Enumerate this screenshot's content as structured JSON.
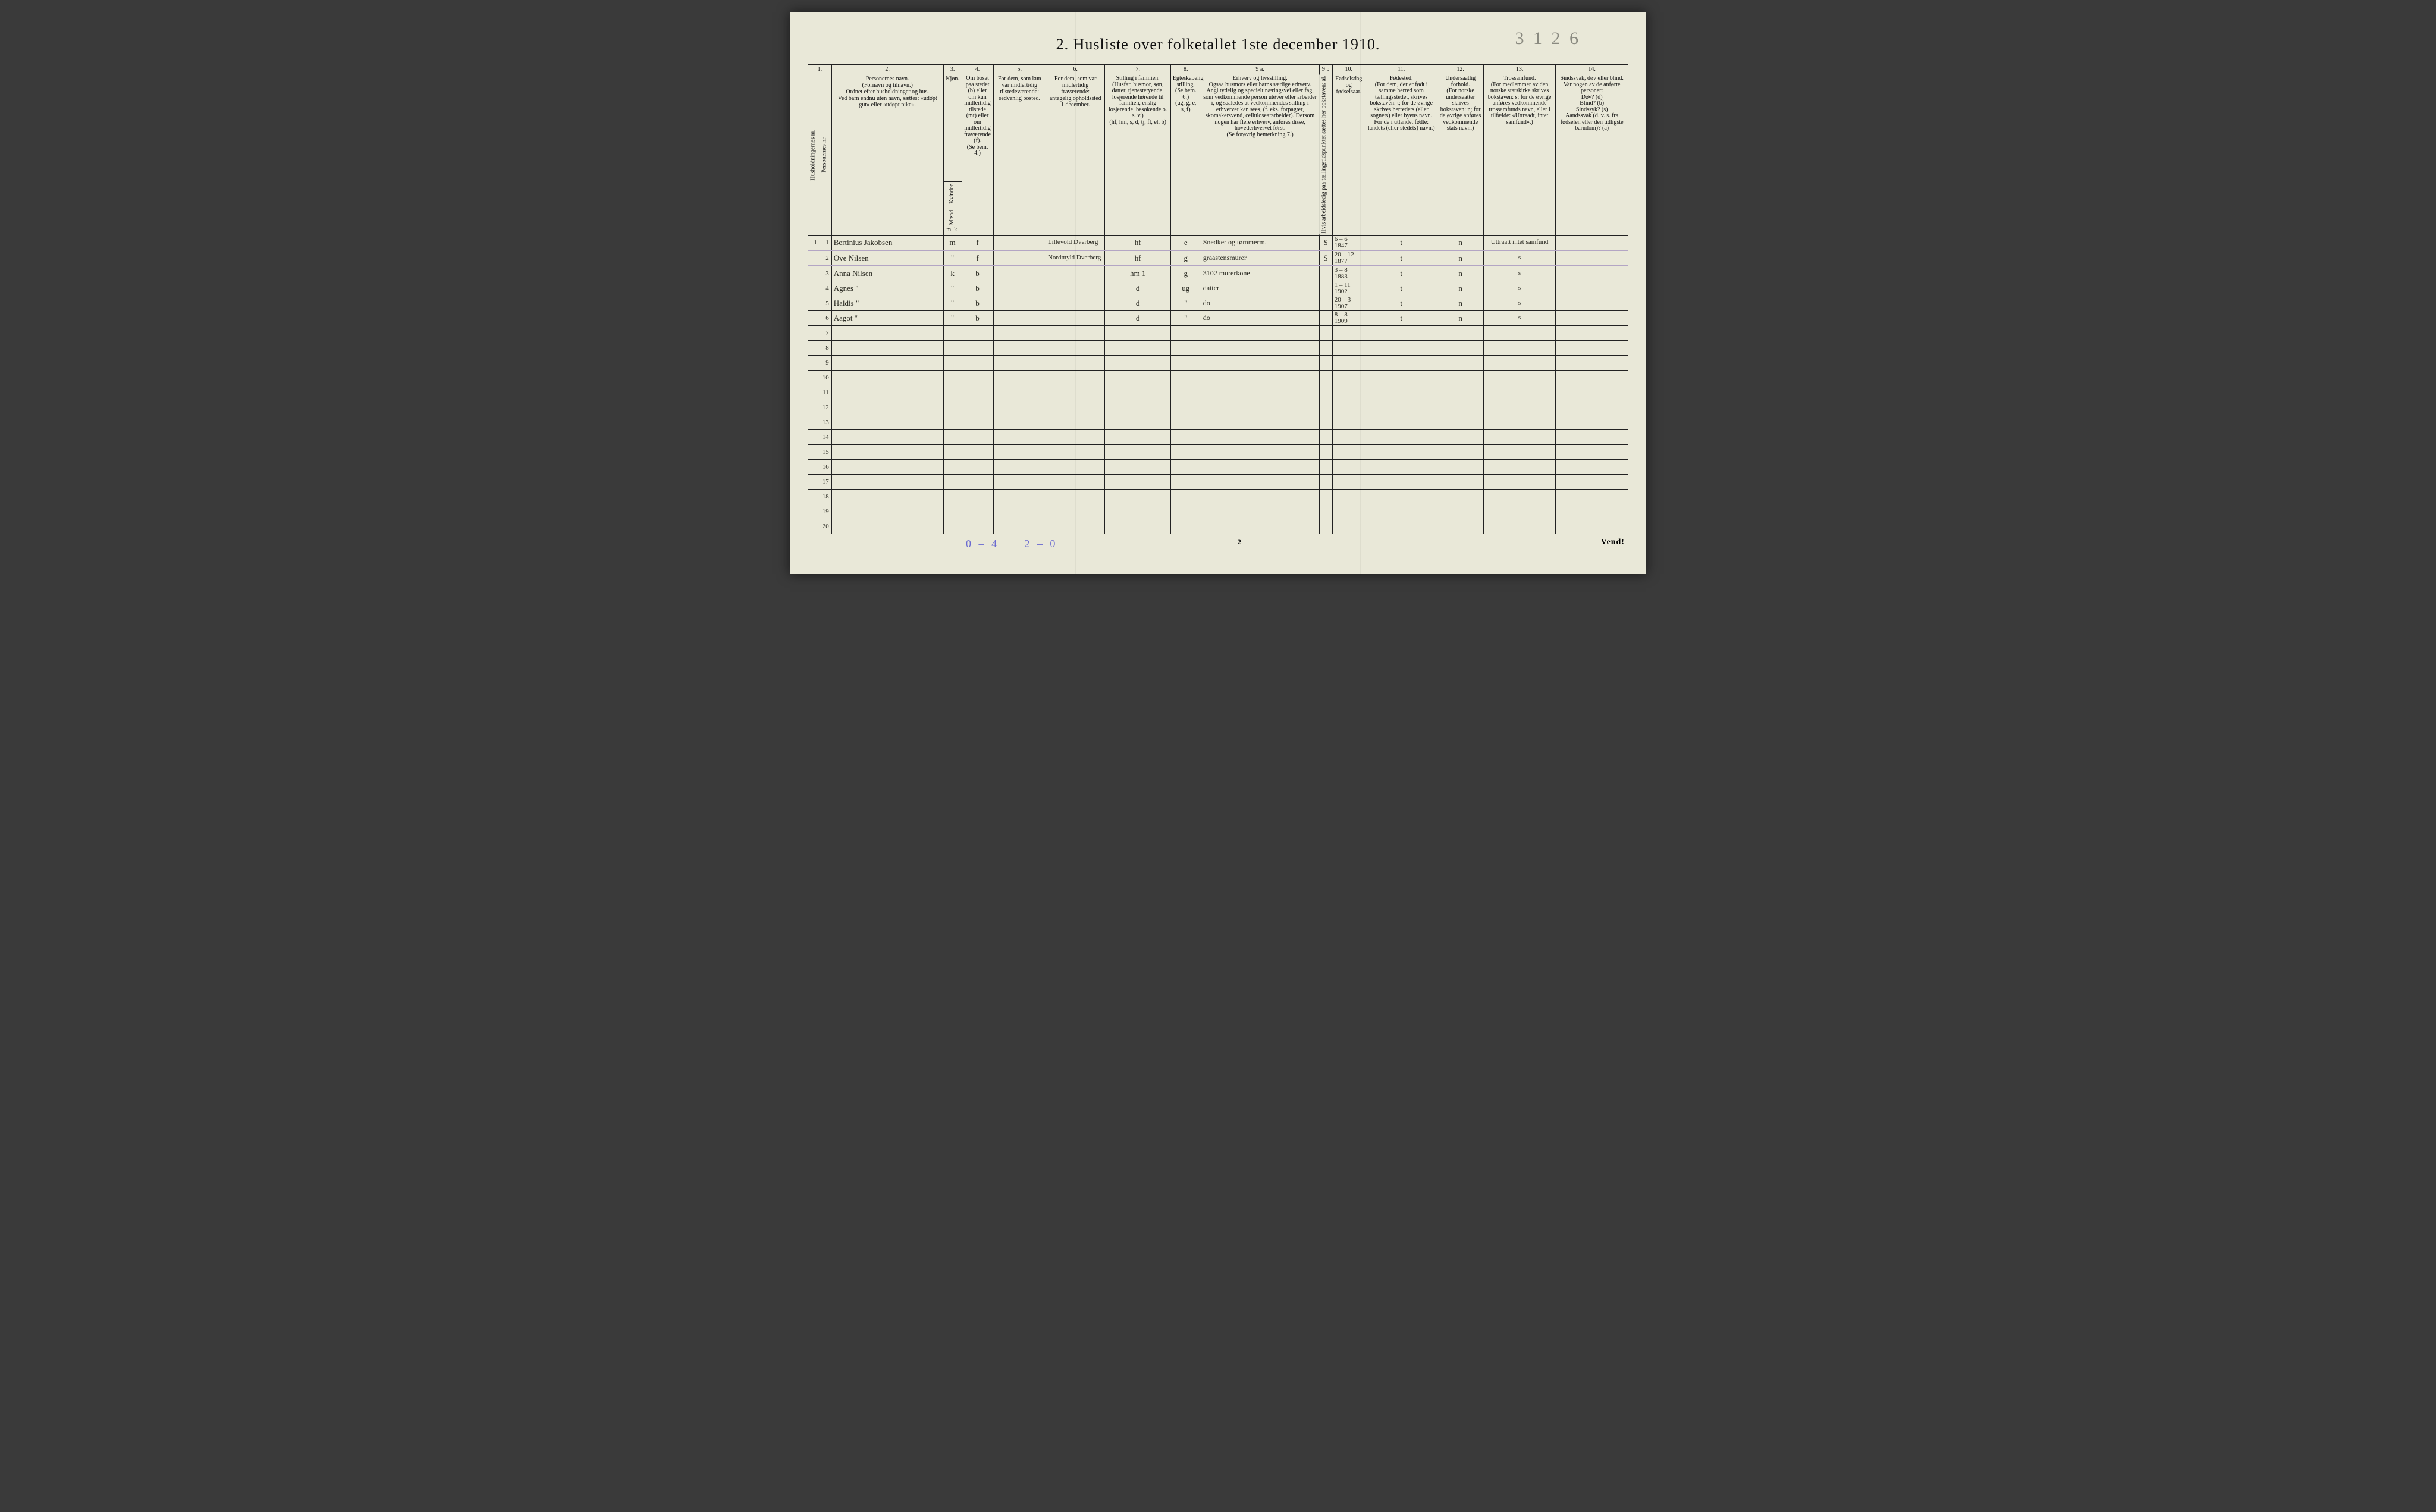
{
  "page": {
    "title": "2.  Husliste over folketallet 1ste december 1910.",
    "top_right_pencil": "3 1 2 6",
    "page_number_center": "2",
    "vend": "Vend!",
    "bottom_left_pencil": "0 – 4",
    "bottom_mid_pencil": "2 – 0"
  },
  "columns": {
    "nums": [
      "1.",
      "",
      "2.",
      "3.",
      "4.",
      "5.",
      "6.",
      "7.",
      "8.",
      "9 a.",
      "9 b",
      "10.",
      "11.",
      "12.",
      "13.",
      "14."
    ],
    "h1_hush": "Husholdningernes nr.",
    "h1_pers": "Personernes nr.",
    "h2": "Personernes navn.\n(Fornavn og tilnavn.)\nOrdnet efter husholdninger og hus.\nVed barn endnu uten navn, sættes: «udøpt gut» eller «udøpt pike».",
    "h3": "Kjøn.",
    "h3_m": "Mænd.",
    "h3_k": "Kvinder.",
    "h3_mk": "m.  k.",
    "h4": "Om bosat paa stedet (b) eller om kun midlertidig tilstede (mt) eller om midlertidig fraværende (f).\n(Se bem. 4.)",
    "h5": "For dem, som kun var midlertidig tilstedeværende:\nsedvanlig bosted.",
    "h6": "For dem, som var midlertidig fraværende:\nantagelig opholdssted 1 december.",
    "h7": "Stilling i familien.\n(Husfar, husmor, søn, datter, tjenestetyende, losjerende hørende til familien, enslig losjerende, besøkende o. s. v.)\n(hf, hm, s, d, tj, fl, el, b)",
    "h8": "Egteskabelig stilling.\n(Se bem. 6.)\n(ug, g, e, s, f)",
    "h9a": "Erhverv og livsstilling.\nOgsaa husmors eller barns særlige erhverv.\nAngi tydelig og specielt næringsvei eller fag, som vedkommende person utøver eller arbeider i, og saaledes at vedkommendes stilling i erhvervet kan sees, (f. eks. forpagter, skomakersvend, celluloseararbeider). Dersom nogen har flere erhverv, anføres disse, hovederhvervet først.\n(Se forøvrig bemerkning 7.)",
    "h9b": "Hvis arbeidsledig paa tællingstidspunktet sættes her bokstaven: al.",
    "h10": "Fødselsdag og fødselsaar.",
    "h11": "Fødested.\n(For dem, der er født i samme herred som tællingsstedet, skrives bokstaven: t; for de øvrige skrives herredets (eller sognets) eller byens navn. For de i utlandet fødte: landets (eller stedets) navn.)",
    "h12": "Undersaatlig forhold.\n(For norske undersaatter skrives bokstaven: n; for de øvrige anføres vedkommende stats navn.)",
    "h13": "Trossamfund.\n(For medlemmer av den norske statskirke skrives bokstaven: s; for de øvrige anføres vedkommende trossamfunds navn, eller i tilfælde: «Uttraadt, intet samfund».)",
    "h14": "Sindssvak, døv eller blind.\nVar nogen av de anførte personer:\nDøv?      (d)\nBlind?    (b)\nSindssyk? (s)\nAandssvak (d. v. s. fra fødselen eller den tidligste barndom)? (a)"
  },
  "rows": [
    {
      "hush": "1",
      "pers": "1",
      "name": "Bertinius Jakobsen",
      "sex": "m",
      "bosat": "f",
      "col5": "",
      "col6": "Lillevold Dverberg",
      "col7": "hf",
      "col8": "e",
      "col9a": "Snedker og tømmerm.",
      "col9b": "S",
      "col10": "6 – 6\n1847",
      "col11": "t",
      "col12": "n",
      "col13": "Uttraatt intet samfund",
      "col14": ""
    },
    {
      "hush": "",
      "pers": "2",
      "name": "Ove      Nilsen",
      "sex": "\"",
      "bosat": "f",
      "col5": "",
      "col6": "Nordmyld Dverberg",
      "col7": "hf",
      "col8": "g",
      "col9a": "graastensmurer",
      "col9b": "S",
      "col10": "20 – 12\n1877",
      "col11": "t",
      "col12": "n",
      "col13": "s",
      "col14": ""
    },
    {
      "hush": "",
      "pers": "3",
      "name": "Anna    Nilsen",
      "sex": "k",
      "bosat": "b",
      "col5": "",
      "col6": "",
      "col7": "hm   1",
      "col8": "g",
      "col9a": "3102 murerkone",
      "col9b": "",
      "col10": "3 – 8\n1883",
      "col11": "t",
      "col12": "n",
      "col13": "s",
      "col14": ""
    },
    {
      "hush": "",
      "pers": "4",
      "name": "Agnes      \"",
      "sex": "\"",
      "bosat": "b",
      "col5": "",
      "col6": "",
      "col7": "d",
      "col8": "ug",
      "col9a": "datter",
      "col9b": "",
      "col10": "1 – 11\n1902",
      "col11": "t",
      "col12": "n",
      "col13": "s",
      "col14": ""
    },
    {
      "hush": "",
      "pers": "5",
      "name": "Haldis     \"",
      "sex": "\"",
      "bosat": "b",
      "col5": "",
      "col6": "",
      "col7": "d",
      "col8": "\"",
      "col9a": "do",
      "col9b": "",
      "col10": "20 – 3\n1907",
      "col11": "t",
      "col12": "n",
      "col13": "s",
      "col14": ""
    },
    {
      "hush": "",
      "pers": "6",
      "name": "Aagot      \"",
      "sex": "\"",
      "bosat": "b",
      "col5": "",
      "col6": "",
      "col7": "d",
      "col8": "\"",
      "col9a": "do",
      "col9b": "",
      "col10": "8 – 8\n1909",
      "col11": "t",
      "col12": "n",
      "col13": "s",
      "col14": ""
    }
  ],
  "empty_row_count": 14,
  "col_widths": [
    "18px",
    "18px",
    "170px",
    "28px",
    "48px",
    "80px",
    "90px",
    "100px",
    "46px",
    "180px",
    "20px",
    "50px",
    "110px",
    "70px",
    "110px",
    "110px"
  ]
}
